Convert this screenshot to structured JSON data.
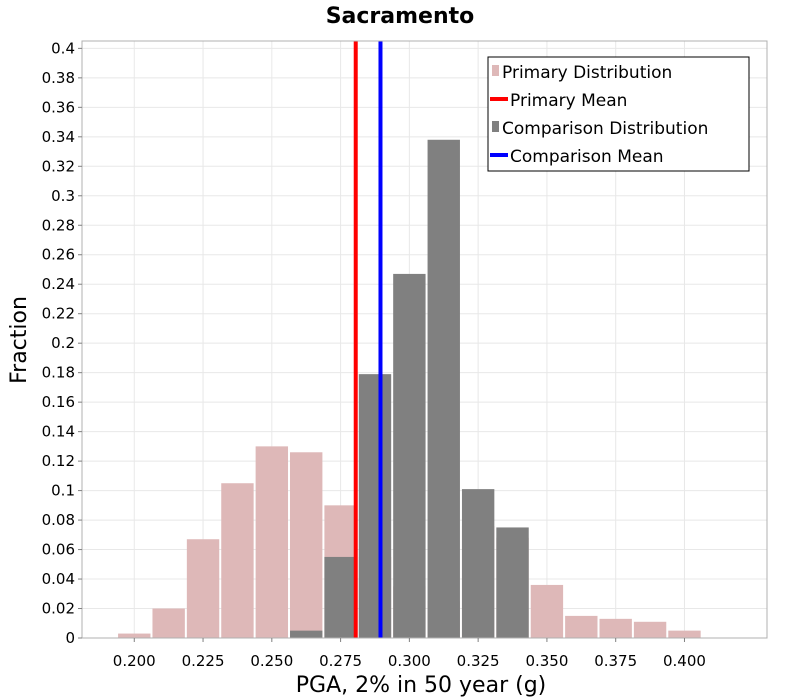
{
  "chart_data": {
    "type": "bar",
    "title": "Sacramento",
    "xlabel": "PGA, 2% in 50 year (g)",
    "ylabel": "Fraction",
    "xlim": [
      0.181,
      0.43
    ],
    "ylim": [
      0,
      0.405
    ],
    "xticks": [
      "0.200",
      "0.225",
      "0.250",
      "0.275",
      "0.300",
      "0.325",
      "0.350",
      "0.375",
      "0.400"
    ],
    "yticks": [
      "0",
      "0.02",
      "0.04",
      "0.06",
      "0.08",
      "0.1",
      "0.12",
      "0.14",
      "0.16",
      "0.18",
      "0.2",
      "0.22",
      "0.24",
      "0.26",
      "0.28",
      "0.3",
      "0.32",
      "0.34",
      "0.36",
      "0.38",
      "0.4"
    ],
    "bin_width": 0.0125,
    "grid": true,
    "legend_position": "top-right",
    "series": [
      {
        "name": "Primary Distribution",
        "kind": "histogram",
        "color": "#deb8b8",
        "x": [
          0.2,
          0.2125,
          0.225,
          0.2375,
          0.25,
          0.2625,
          0.275,
          0.2875,
          0.3,
          0.3125,
          0.325,
          0.3375,
          0.35,
          0.3625,
          0.375,
          0.3875,
          0.4
        ],
        "values": [
          0.003,
          0.02,
          0.067,
          0.105,
          0.13,
          0.126,
          0.09,
          0.055,
          0.035,
          0.025,
          0.076,
          0.068,
          0.036,
          0.015,
          0.013,
          0.011,
          0.005
        ]
      },
      {
        "name": "Primary Mean",
        "kind": "vline",
        "color": "#ff0000",
        "value": 0.2805
      },
      {
        "name": "Comparison Distribution",
        "kind": "histogram",
        "color": "#808080",
        "x": [
          0.2625,
          0.275,
          0.2875,
          0.3,
          0.3125,
          0.325,
          0.3375
        ],
        "values": [
          0.005,
          0.055,
          0.179,
          0.247,
          0.338,
          0.101,
          0.075
        ]
      },
      {
        "name": "Comparison Mean",
        "kind": "vline",
        "color": "#0000ff",
        "value": 0.2895
      }
    ]
  }
}
